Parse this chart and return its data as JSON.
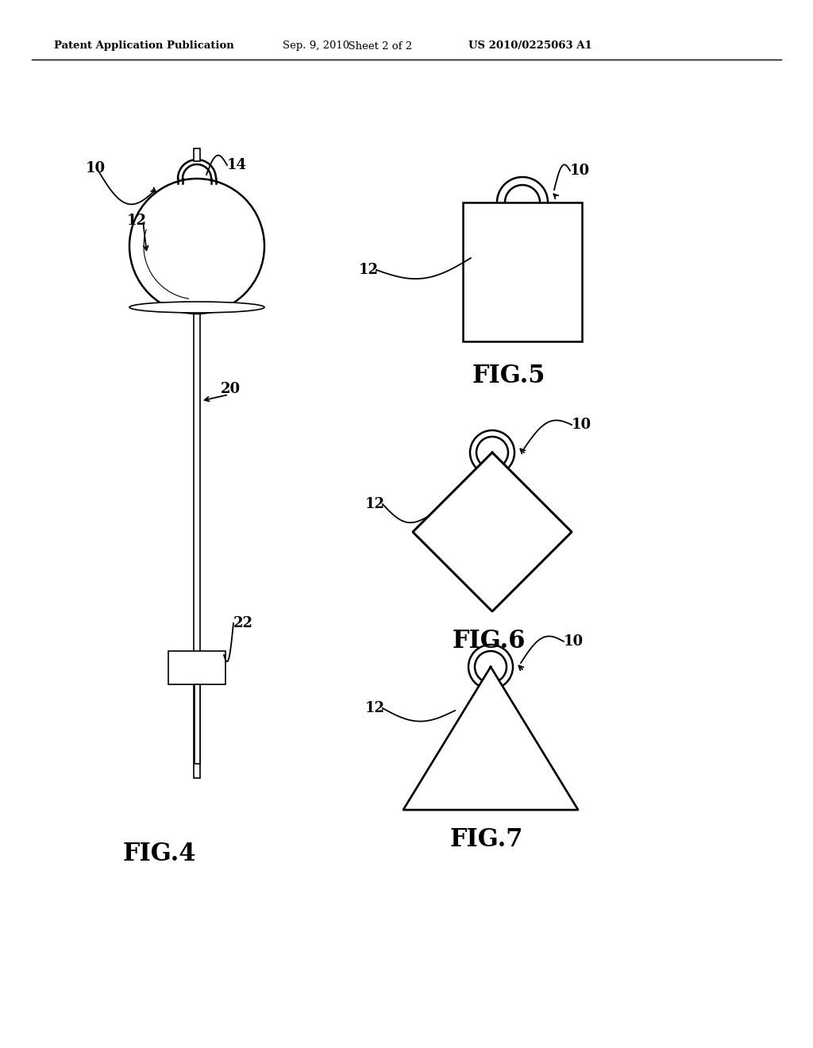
{
  "bg_color": "#ffffff",
  "line_color": "#000000",
  "header_text": "Patent Application Publication",
  "header_date": "Sep. 9, 2010",
  "header_sheet": "  Sheet 2 of 2",
  "header_patent": "US 2010/0225063 A1",
  "fig4_label": "FIG.4",
  "fig5_label": "FIG.5",
  "fig6_label": "FIG.6",
  "fig7_label": "FIG.7"
}
